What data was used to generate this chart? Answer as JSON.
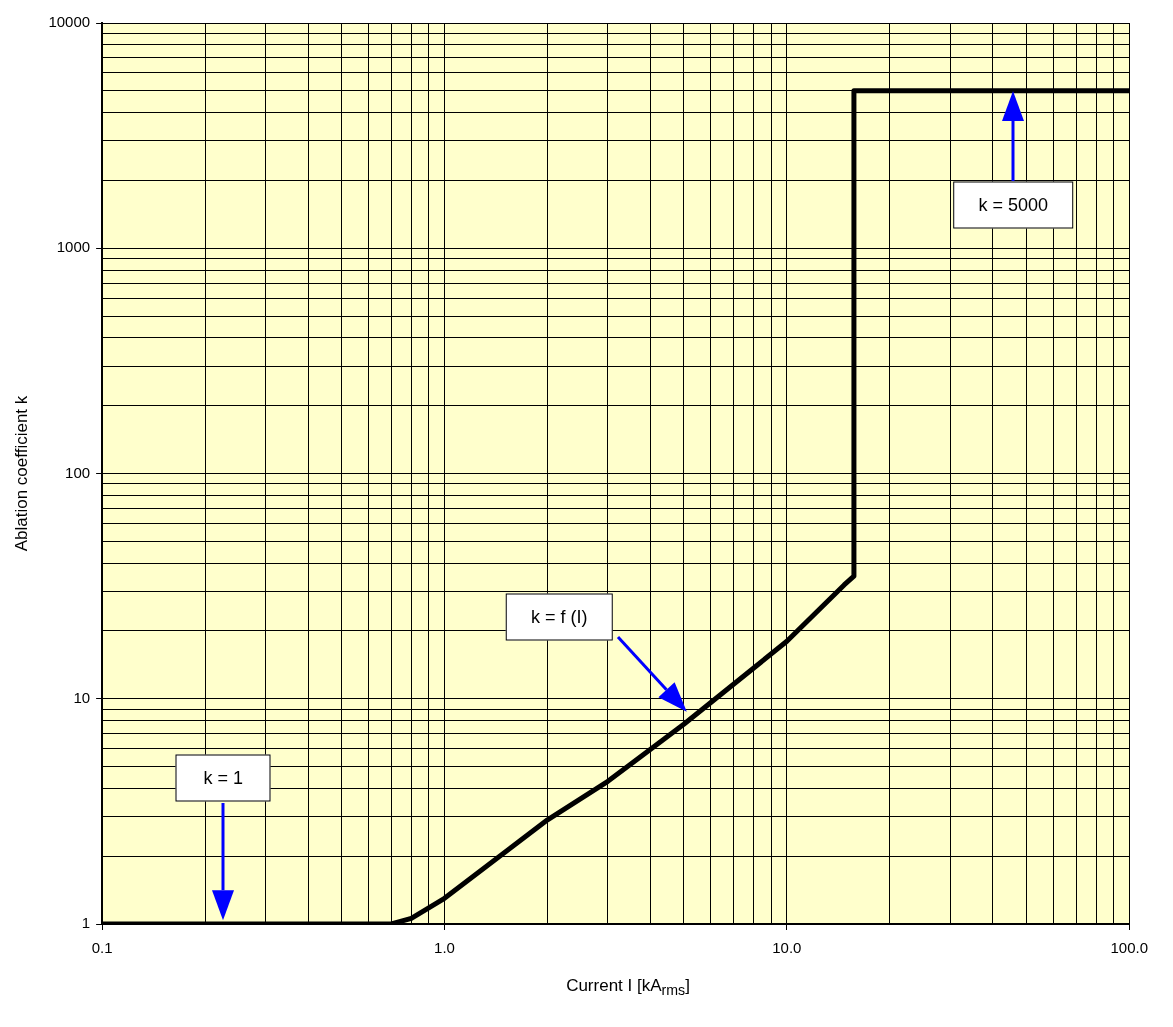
{
  "chart_data": {
    "type": "line",
    "xlabel": "Current I [kA$_{rms}$]",
    "ylabel": "Ablation coefficient k",
    "log": "xy",
    "grid": true,
    "marker": "none",
    "line_style": "solid",
    "xlim": [
      0.1,
      100
    ],
    "ylim": [
      1,
      10000
    ],
    "xticks": [
      {
        "value": 0.1,
        "label": "0.1"
      },
      {
        "value": 0.2,
        "label": null
      },
      {
        "value": 0.3,
        "label": null
      },
      {
        "value": 0.4,
        "label": null
      },
      {
        "value": 0.5,
        "label": null
      },
      {
        "value": 0.6,
        "label": null
      },
      {
        "value": 0.7,
        "label": null
      },
      {
        "value": 0.8,
        "label": null
      },
      {
        "value": 0.9,
        "label": null
      },
      {
        "value": 1,
        "label": "1.0"
      },
      {
        "value": 2,
        "label": null
      },
      {
        "value": 3,
        "label": null
      },
      {
        "value": 4,
        "label": null
      },
      {
        "value": 5,
        "label": null
      },
      {
        "value": 6,
        "label": null
      },
      {
        "value": 7,
        "label": null
      },
      {
        "value": 8,
        "label": null
      },
      {
        "value": 9,
        "label": null
      },
      {
        "value": 10,
        "label": "10.0"
      },
      {
        "value": 20,
        "label": null
      },
      {
        "value": 30,
        "label": null
      },
      {
        "value": 40,
        "label": null
      },
      {
        "value": 50,
        "label": null
      },
      {
        "value": 60,
        "label": null
      },
      {
        "value": 70,
        "label": null
      },
      {
        "value": 80,
        "label": null
      },
      {
        "value": 90,
        "label": null
      },
      {
        "value": 100,
        "label": "100.0"
      }
    ],
    "yticks": [
      1,
      {
        "value": 2,
        "label": null
      },
      {
        "value": 3,
        "label": null
      },
      {
        "value": 4,
        "label": null
      },
      {
        "value": 5,
        "label": null
      },
      {
        "value": 6,
        "label": null
      },
      {
        "value": 7,
        "label": null
      },
      {
        "value": 8,
        "label": null
      },
      {
        "value": 9,
        "label": null
      },
      10,
      {
        "value": 20,
        "label": null
      },
      {
        "value": 30,
        "label": null
      },
      {
        "value": 40,
        "label": null
      },
      {
        "value": 50,
        "label": null
      },
      {
        "value": 60,
        "label": null
      },
      {
        "value": 70,
        "label": null
      },
      {
        "value": 80,
        "label": null
      },
      {
        "value": 90,
        "label": null
      },
      100,
      {
        "value": 200,
        "label": null
      },
      {
        "value": 300,
        "label": null
      },
      {
        "value": 400,
        "label": null
      },
      {
        "value": 500,
        "label": null
      },
      {
        "value": 600,
        "label": null
      },
      {
        "value": 700,
        "label": null
      },
      {
        "value": 800,
        "label": null
      },
      {
        "value": 900,
        "label": null
      },
      1000,
      {
        "value": 2000,
        "label": null
      },
      {
        "value": 3000,
        "label": null
      },
      {
        "value": 4000,
        "label": null
      },
      {
        "value": 5000,
        "label": null
      },
      {
        "value": 6000,
        "label": null
      },
      {
        "value": 7000,
        "label": null
      },
      {
        "value": 8000,
        "label": null
      },
      {
        "value": 9000,
        "label": null
      },
      10000
    ],
    "series": [
      {
        "color": "#000000",
        "x": [
          0.1,
          0.7,
          0.8,
          1.0,
          2.0,
          3.0,
          5.0,
          10,
          14.7,
          15.7,
          15.7,
          100
        ],
        "values": [
          1,
          1,
          1.06,
          1.3,
          2.9,
          4.3,
          7.7,
          18,
          32,
          35,
          5000,
          5000
        ]
      }
    ],
    "annotations": [
      "k = 1",
      "k = f (I)",
      "k = 5000"
    ]
  }
}
